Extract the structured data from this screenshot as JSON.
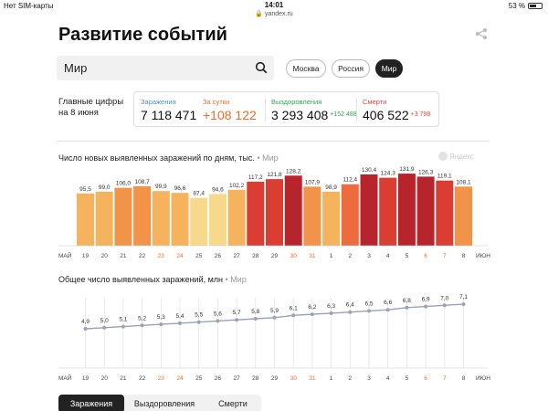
{
  "status_bar": {
    "carrier": "Нет SIM-карты",
    "time": "14:01",
    "battery": "53 %",
    "url": "yandex.ru"
  },
  "page": {
    "title": "Развитие событий"
  },
  "search": {
    "value": "Мир"
  },
  "regions": [
    {
      "label": "Москва",
      "active": false
    },
    {
      "label": "Россия",
      "active": false
    },
    {
      "label": "Мир",
      "active": true
    }
  ],
  "summary": {
    "label_line1": "Главные цифры",
    "label_line2": "на 8 июня",
    "infected": {
      "label": "Заражения",
      "value": "7 118 471",
      "color": "#4a90d9"
    },
    "daily": {
      "label": "За сутки",
      "value": "+108 122",
      "color": "#f36b21"
    },
    "recovered": {
      "label": "Выздоровления",
      "value": "3 293 408",
      "delta": "+152 488",
      "color": "#2eaa4f"
    },
    "deaths": {
      "label": "Смерти",
      "value": "406 522",
      "delta": "+3 798",
      "color": "#e8453c"
    }
  },
  "watermark": "Яндекс",
  "chart_data": [
    {
      "type": "bar",
      "title": "Число новых выявленных заражений по дням, тыс.",
      "region": "Мир",
      "categories": [
        "19",
        "20",
        "21",
        "22",
        "23",
        "24",
        "25",
        "26",
        "27",
        "28",
        "29",
        "30",
        "31",
        "1",
        "2",
        "3",
        "4",
        "5",
        "6",
        "7",
        "8"
      ],
      "values": [
        95.5,
        99.0,
        106.0,
        108.7,
        99.9,
        96.6,
        87.4,
        94.6,
        102.2,
        117.2,
        121.8,
        128.2,
        107.9,
        98.9,
        112.4,
        130.4,
        124.3,
        131.9,
        126.3,
        119.1,
        108.1
      ],
      "value_labels": [
        "95,5",
        "99,0",
        "106,0",
        "108,7",
        "99,9",
        "96,6",
        "87,4",
        "94,6",
        "102,2",
        "117,2",
        "121,8",
        "128,2",
        "107,9",
        "98,9",
        "112,4",
        "130,4",
        "124,3",
        "131,9",
        "126,3",
        "119,1",
        "108,1"
      ],
      "weekend": [
        false,
        false,
        false,
        false,
        true,
        true,
        false,
        false,
        false,
        false,
        false,
        true,
        true,
        false,
        false,
        false,
        false,
        false,
        true,
        true,
        false
      ],
      "month_start_label": "МАЙ",
      "month_end_label": "ИЮН",
      "color_scale": [
        "#f7d98b",
        "#f6b35e",
        "#f2934a",
        "#ec6b3f",
        "#dc3d33",
        "#b8242c"
      ]
    },
    {
      "type": "line",
      "title": "Общее число выявленных заражений, млн",
      "region": "Мир",
      "categories": [
        "19",
        "20",
        "21",
        "22",
        "23",
        "24",
        "25",
        "26",
        "27",
        "28",
        "29",
        "30",
        "31",
        "1",
        "2",
        "3",
        "4",
        "5",
        "6",
        "7",
        "8"
      ],
      "values": [
        4.9,
        5.0,
        5.1,
        5.2,
        5.3,
        5.4,
        5.5,
        5.6,
        5.7,
        5.8,
        5.9,
        6.1,
        6.2,
        6.3,
        6.4,
        6.5,
        6.6,
        6.8,
        6.9,
        7.0,
        7.1
      ],
      "value_labels": [
        "4,9",
        "5,0",
        "5,1",
        "5,2",
        "5,3",
        "5,4",
        "5,5",
        "5,6",
        "5,7",
        "5,8",
        "5,9",
        "6,1",
        "6,2",
        "6,3",
        "6,4",
        "6,5",
        "6,6",
        "6,8",
        "6,9",
        "7,0",
        "7,1"
      ],
      "weekend": [
        false,
        false,
        false,
        false,
        true,
        true,
        false,
        false,
        false,
        false,
        false,
        true,
        true,
        false,
        false,
        false,
        false,
        false,
        true,
        true,
        false
      ],
      "month_start_label": "МАЙ",
      "month_end_label": "ИЮН",
      "line_color": "#9aa3b3"
    }
  ],
  "bottom_tabs": [
    {
      "label": "Заражения",
      "active": true
    },
    {
      "label": "Выздоровления",
      "active": false
    },
    {
      "label": "Смерти",
      "active": false
    }
  ]
}
